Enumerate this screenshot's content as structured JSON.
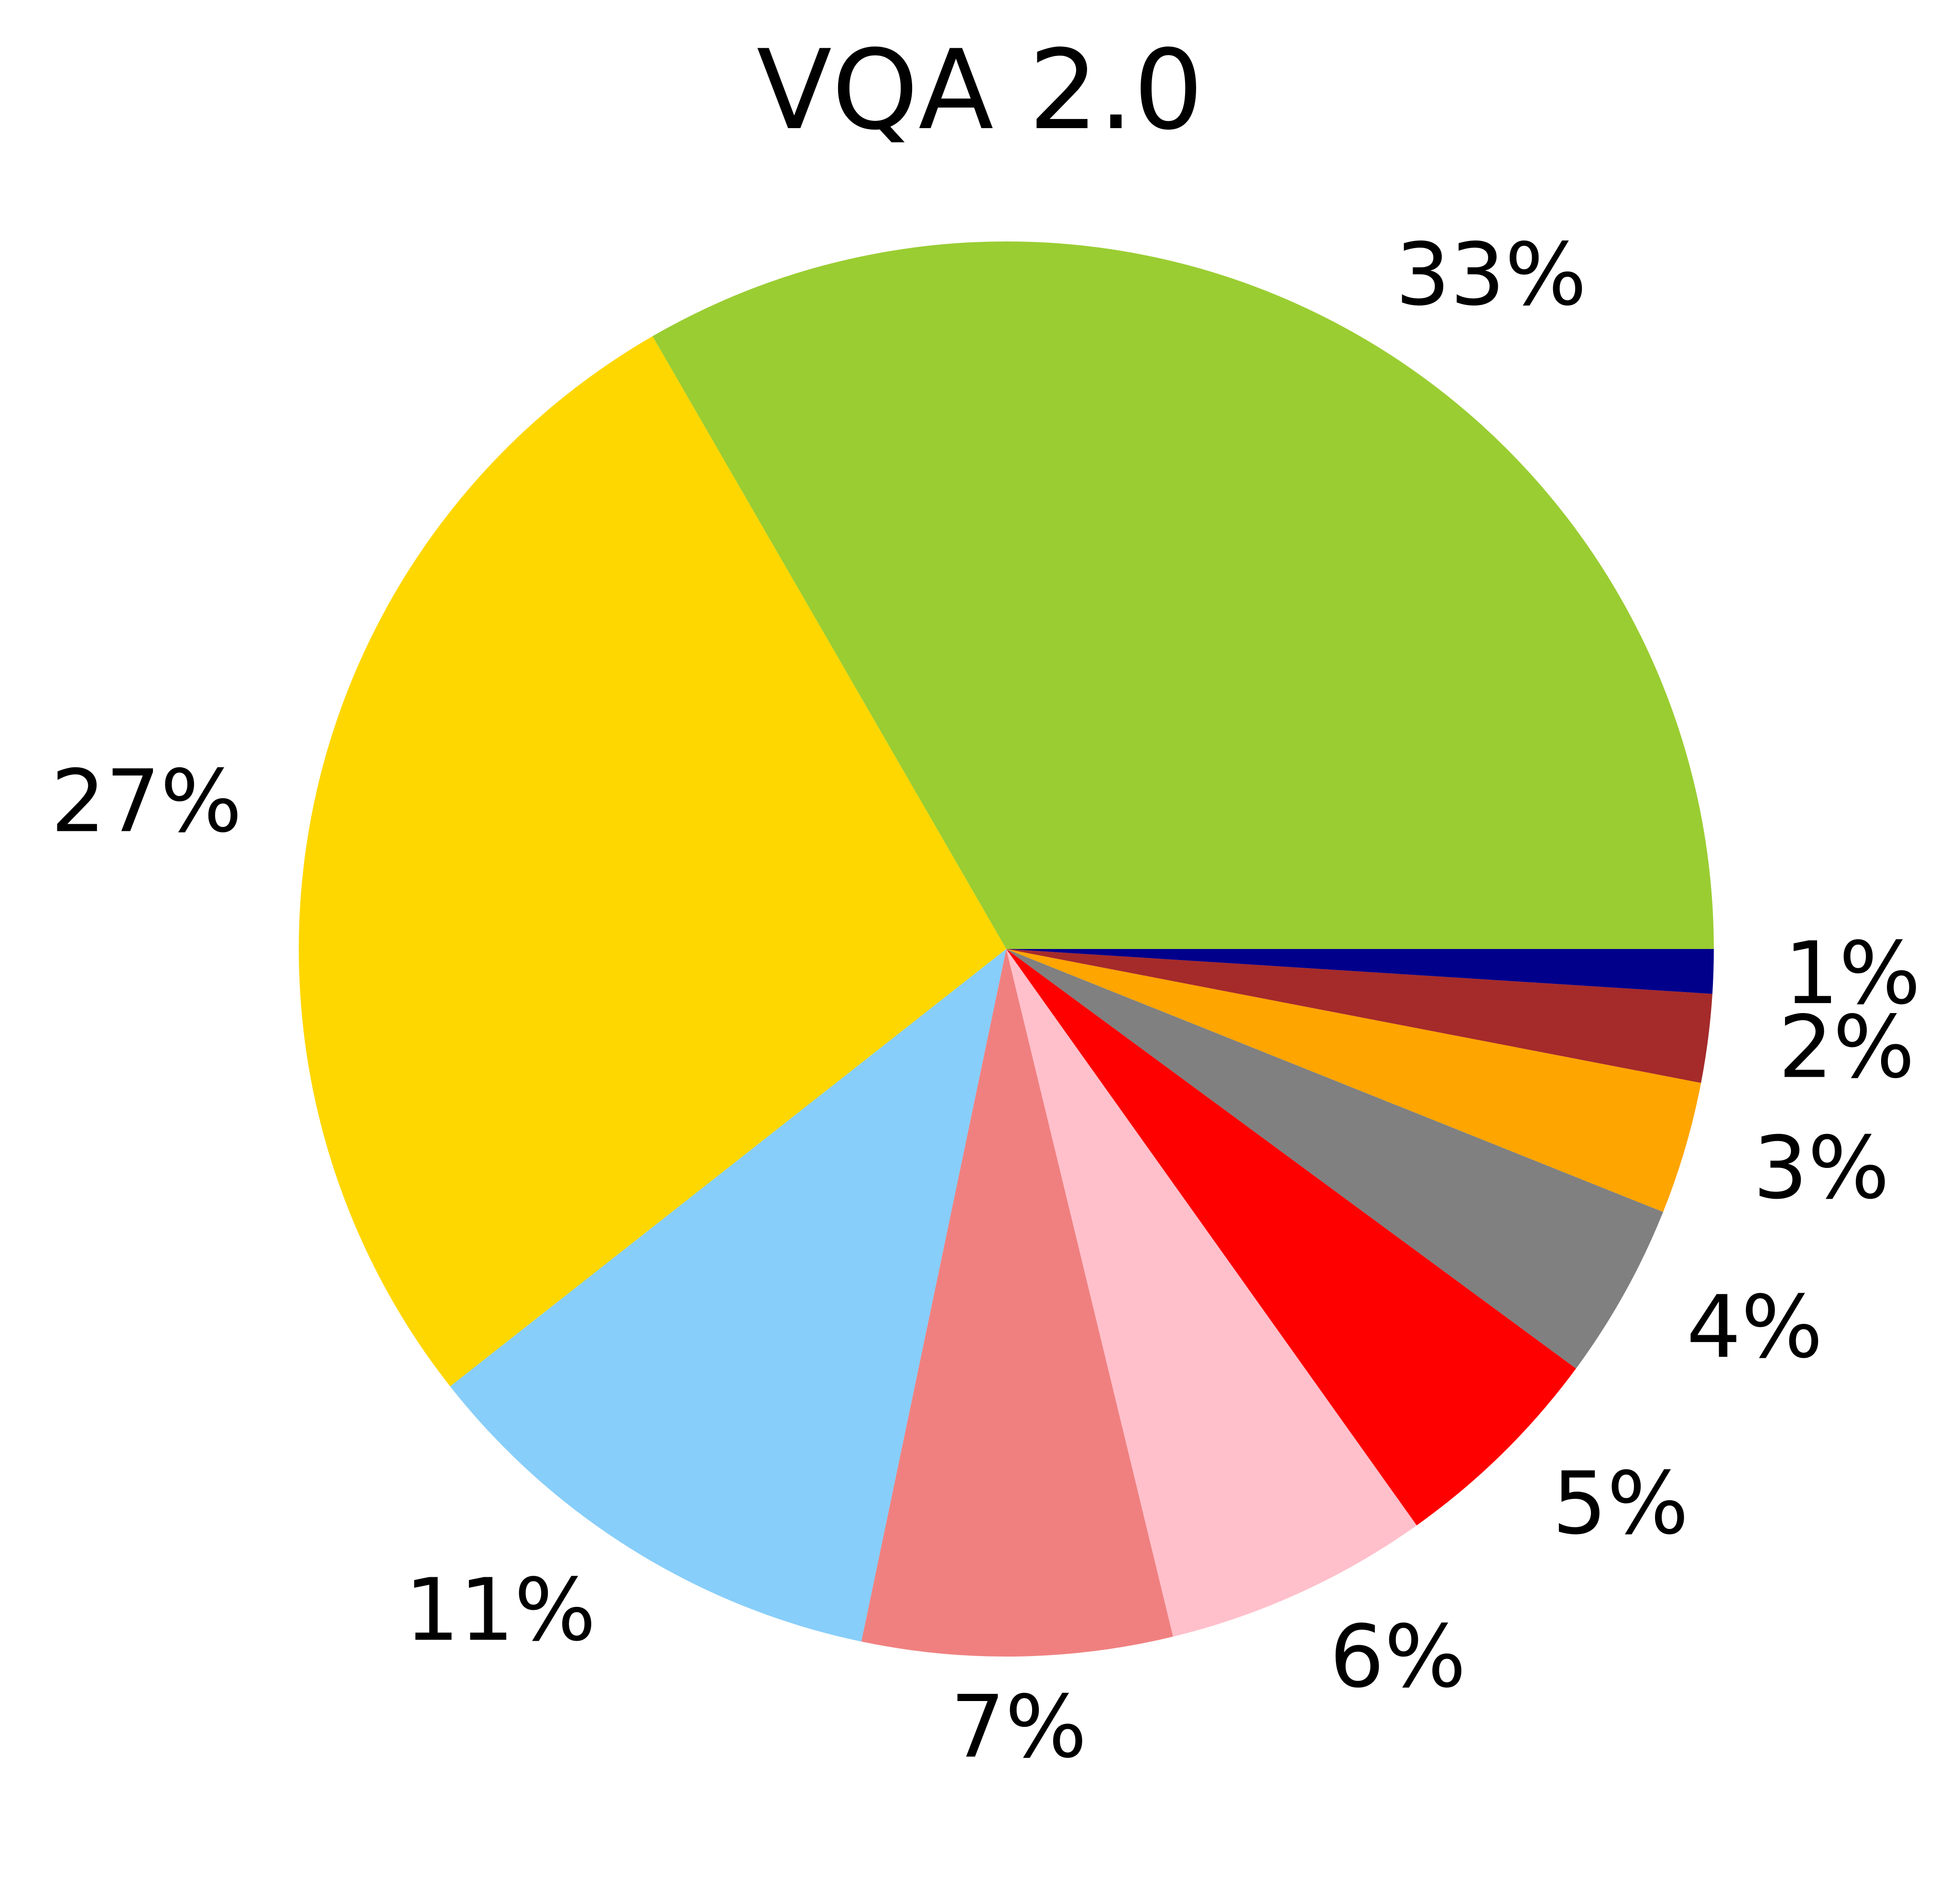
{
  "chart_data": {
    "type": "pie",
    "title": "VQA 2.0",
    "start_angle_deg": 0,
    "direction": "counterclockwise",
    "slices": [
      {
        "value": 33,
        "label": "33%",
        "color": "#9ACD32"
      },
      {
        "value": 27,
        "label": "27%",
        "color": "#FFD700"
      },
      {
        "value": 11,
        "label": "11%",
        "color": "#87CEFA"
      },
      {
        "value": 7,
        "label": "7%",
        "color": "#F08080"
      },
      {
        "value": 6,
        "label": "6%",
        "color": "#FFC0CB"
      },
      {
        "value": 5,
        "label": "5%",
        "color": "#FF0000"
      },
      {
        "value": 4,
        "label": "4%",
        "color": "#808080"
      },
      {
        "value": 3,
        "label": "3%",
        "color": "#FFA500"
      },
      {
        "value": 2,
        "label": "2%",
        "color": "#A52A2A"
      },
      {
        "value": 1,
        "label": "1%",
        "color": "#00008B"
      }
    ]
  }
}
